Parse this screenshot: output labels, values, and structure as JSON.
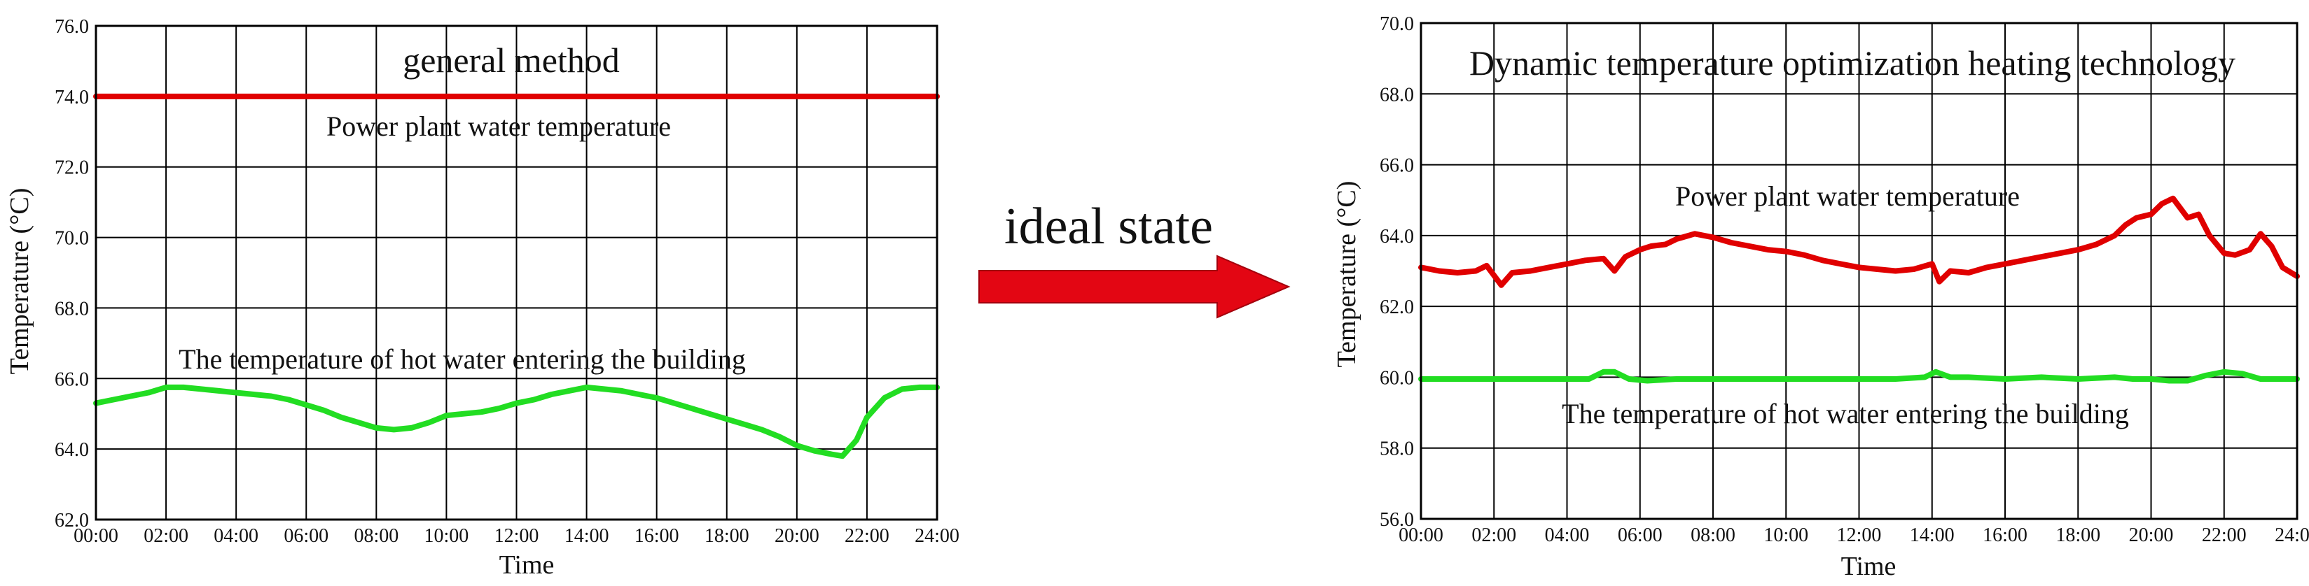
{
  "middle": {
    "label": "ideal state",
    "arrow_color": "#e30613"
  },
  "colors": {
    "power_plant_line": "#e00000",
    "hot_water_line": "#22dd22",
    "grid": "#000000"
  },
  "chart_data": [
    {
      "type": "line",
      "title": "general method",
      "xlabel": "Time",
      "ylabel": "Temperature (°C)",
      "xlim": [
        "00:00",
        "24:00"
      ],
      "ylim": [
        62,
        76
      ],
      "x_ticks": [
        "00:00",
        "02:00",
        "04:00",
        "06:00",
        "08:00",
        "10:00",
        "12:00",
        "14:00",
        "16:00",
        "18:00",
        "20:00",
        "22:00",
        "24:00"
      ],
      "y_ticks": [
        "62.0",
        "64.0",
        "66.0",
        "68.0",
        "70.0",
        "72.0",
        "74.0",
        "76.0"
      ],
      "grid": true,
      "annotations": [
        "Power plant water temperature",
        "The temperature of hot water entering the building"
      ],
      "series": [
        {
          "name": "Power plant water temperature",
          "color": "#e00000",
          "x_hours": [
            0,
            24
          ],
          "values": [
            74.0,
            74.0
          ]
        },
        {
          "name": "The temperature of hot water entering the building",
          "color": "#22dd22",
          "x_hours": [
            0,
            0.5,
            1,
            1.5,
            2,
            2.5,
            3,
            3.5,
            4,
            4.5,
            5,
            5.5,
            6,
            6.5,
            7,
            7.5,
            8,
            8.5,
            9,
            9.5,
            10,
            10.5,
            11,
            11.5,
            12,
            12.5,
            13,
            13.5,
            14,
            14.5,
            15,
            15.5,
            16,
            16.5,
            17,
            17.5,
            18,
            18.5,
            19,
            19.5,
            20,
            20.5,
            21,
            21.3,
            21.7,
            22,
            22.5,
            23,
            23.5,
            24
          ],
          "values": [
            65.3,
            65.4,
            65.5,
            65.6,
            65.75,
            65.75,
            65.7,
            65.65,
            65.6,
            65.55,
            65.5,
            65.4,
            65.25,
            65.1,
            64.9,
            64.75,
            64.6,
            64.55,
            64.6,
            64.75,
            64.95,
            65.0,
            65.05,
            65.15,
            65.3,
            65.4,
            65.55,
            65.65,
            65.75,
            65.7,
            65.65,
            65.55,
            65.45,
            65.3,
            65.15,
            65.0,
            64.85,
            64.7,
            64.55,
            64.35,
            64.1,
            63.95,
            63.85,
            63.8,
            64.25,
            64.9,
            65.45,
            65.7,
            65.75,
            65.75
          ]
        }
      ]
    },
    {
      "type": "line",
      "title": "Dynamic temperature optimization heating technology",
      "xlabel": "Time",
      "ylabel": "Temperature (°C)",
      "xlim": [
        "00:00",
        "24:00"
      ],
      "ylim": [
        56,
        70
      ],
      "x_ticks": [
        "00:00",
        "02:00",
        "04:00",
        "06:00",
        "08:00",
        "10:00",
        "12:00",
        "14:00",
        "16:00",
        "18:00",
        "20:00",
        "22:00",
        "24:00"
      ],
      "y_ticks": [
        "56.0",
        "58.0",
        "60.0",
        "62.0",
        "64.0",
        "66.0",
        "68.0",
        "70.0"
      ],
      "grid": true,
      "annotations": [
        "Power plant water temperature",
        "The temperature of hot water entering the building"
      ],
      "series": [
        {
          "name": "Power plant water temperature",
          "color": "#e00000",
          "x_hours": [
            0,
            0.5,
            1,
            1.5,
            1.8,
            2.2,
            2.5,
            3,
            3.5,
            4,
            4.5,
            5,
            5.3,
            5.6,
            6,
            6.3,
            6.7,
            7,
            7.5,
            8,
            8.5,
            9,
            9.5,
            10,
            10.5,
            11,
            11.5,
            12,
            12.5,
            13,
            13.5,
            14,
            14.2,
            14.5,
            15,
            15.5,
            16,
            16.5,
            17,
            17.5,
            18,
            18.5,
            19,
            19.3,
            19.6,
            20,
            20.3,
            20.6,
            21,
            21.3,
            21.6,
            22,
            22.3,
            22.7,
            23,
            23.3,
            23.6,
            24
          ],
          "values": [
            63.1,
            63.0,
            62.95,
            63.0,
            63.15,
            62.6,
            62.95,
            63.0,
            63.1,
            63.2,
            63.3,
            63.35,
            63.0,
            63.4,
            63.6,
            63.7,
            63.75,
            63.9,
            64.05,
            63.95,
            63.8,
            63.7,
            63.6,
            63.55,
            63.45,
            63.3,
            63.2,
            63.1,
            63.05,
            63.0,
            63.05,
            63.2,
            62.7,
            63.0,
            62.95,
            63.1,
            63.2,
            63.3,
            63.4,
            63.5,
            63.6,
            63.75,
            64.0,
            64.3,
            64.5,
            64.6,
            64.9,
            65.05,
            64.5,
            64.6,
            64.0,
            63.5,
            63.45,
            63.6,
            64.05,
            63.7,
            63.1,
            62.85
          ]
        },
        {
          "name": "The temperature of hot water entering the building",
          "color": "#22dd22",
          "x_hours": [
            0,
            1,
            2,
            3,
            4,
            4.6,
            5,
            5.3,
            5.7,
            6.2,
            7,
            8,
            9,
            10,
            11,
            12,
            13,
            13.8,
            14.1,
            14.5,
            15,
            16,
            17,
            18,
            19,
            19.5,
            20,
            20.5,
            21,
            21.5,
            22,
            22.5,
            23,
            24
          ],
          "values": [
            59.95,
            59.95,
            59.95,
            59.95,
            59.95,
            59.95,
            60.15,
            60.15,
            59.95,
            59.9,
            59.95,
            59.95,
            59.95,
            59.95,
            59.95,
            59.95,
            59.95,
            60.0,
            60.15,
            60.0,
            60.0,
            59.95,
            60.0,
            59.95,
            60.0,
            59.95,
            59.95,
            59.9,
            59.9,
            60.05,
            60.15,
            60.1,
            59.95,
            59.95
          ]
        }
      ]
    }
  ]
}
